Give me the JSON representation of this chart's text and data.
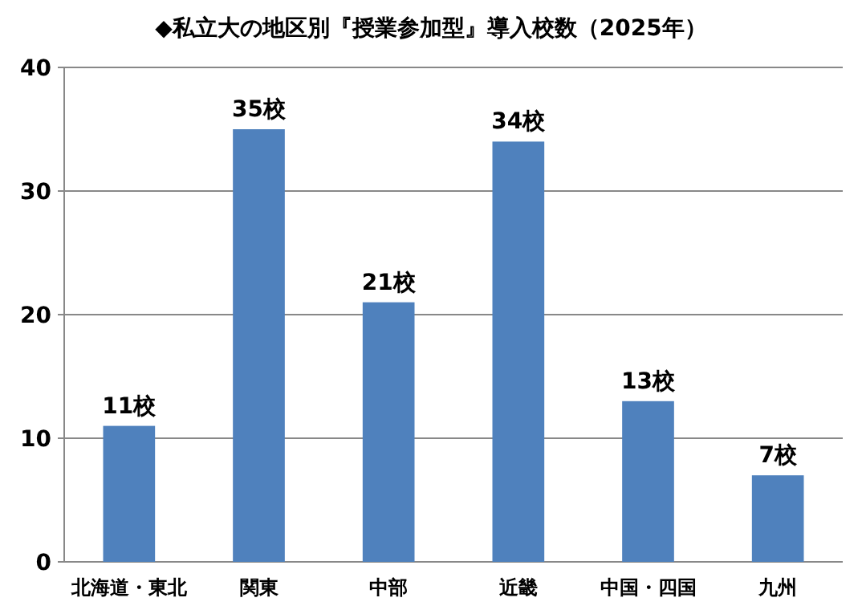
{
  "chart_data": {
    "type": "bar",
    "title": "◆私立大の地区別『授業参加型』導入校数（2025年）",
    "categories": [
      "北海道・東北",
      "関東",
      "中部",
      "近畿",
      "中国・四国",
      "九州"
    ],
    "values": [
      11,
      35,
      21,
      34,
      13,
      7
    ],
    "value_labels": [
      "11校",
      "35校",
      "21校",
      "34校",
      "13校",
      "7校"
    ],
    "color": "#4f81bd",
    "ylim": [
      0,
      40
    ],
    "yticks": [
      0,
      10,
      20,
      30,
      40
    ],
    "grid": "y"
  }
}
